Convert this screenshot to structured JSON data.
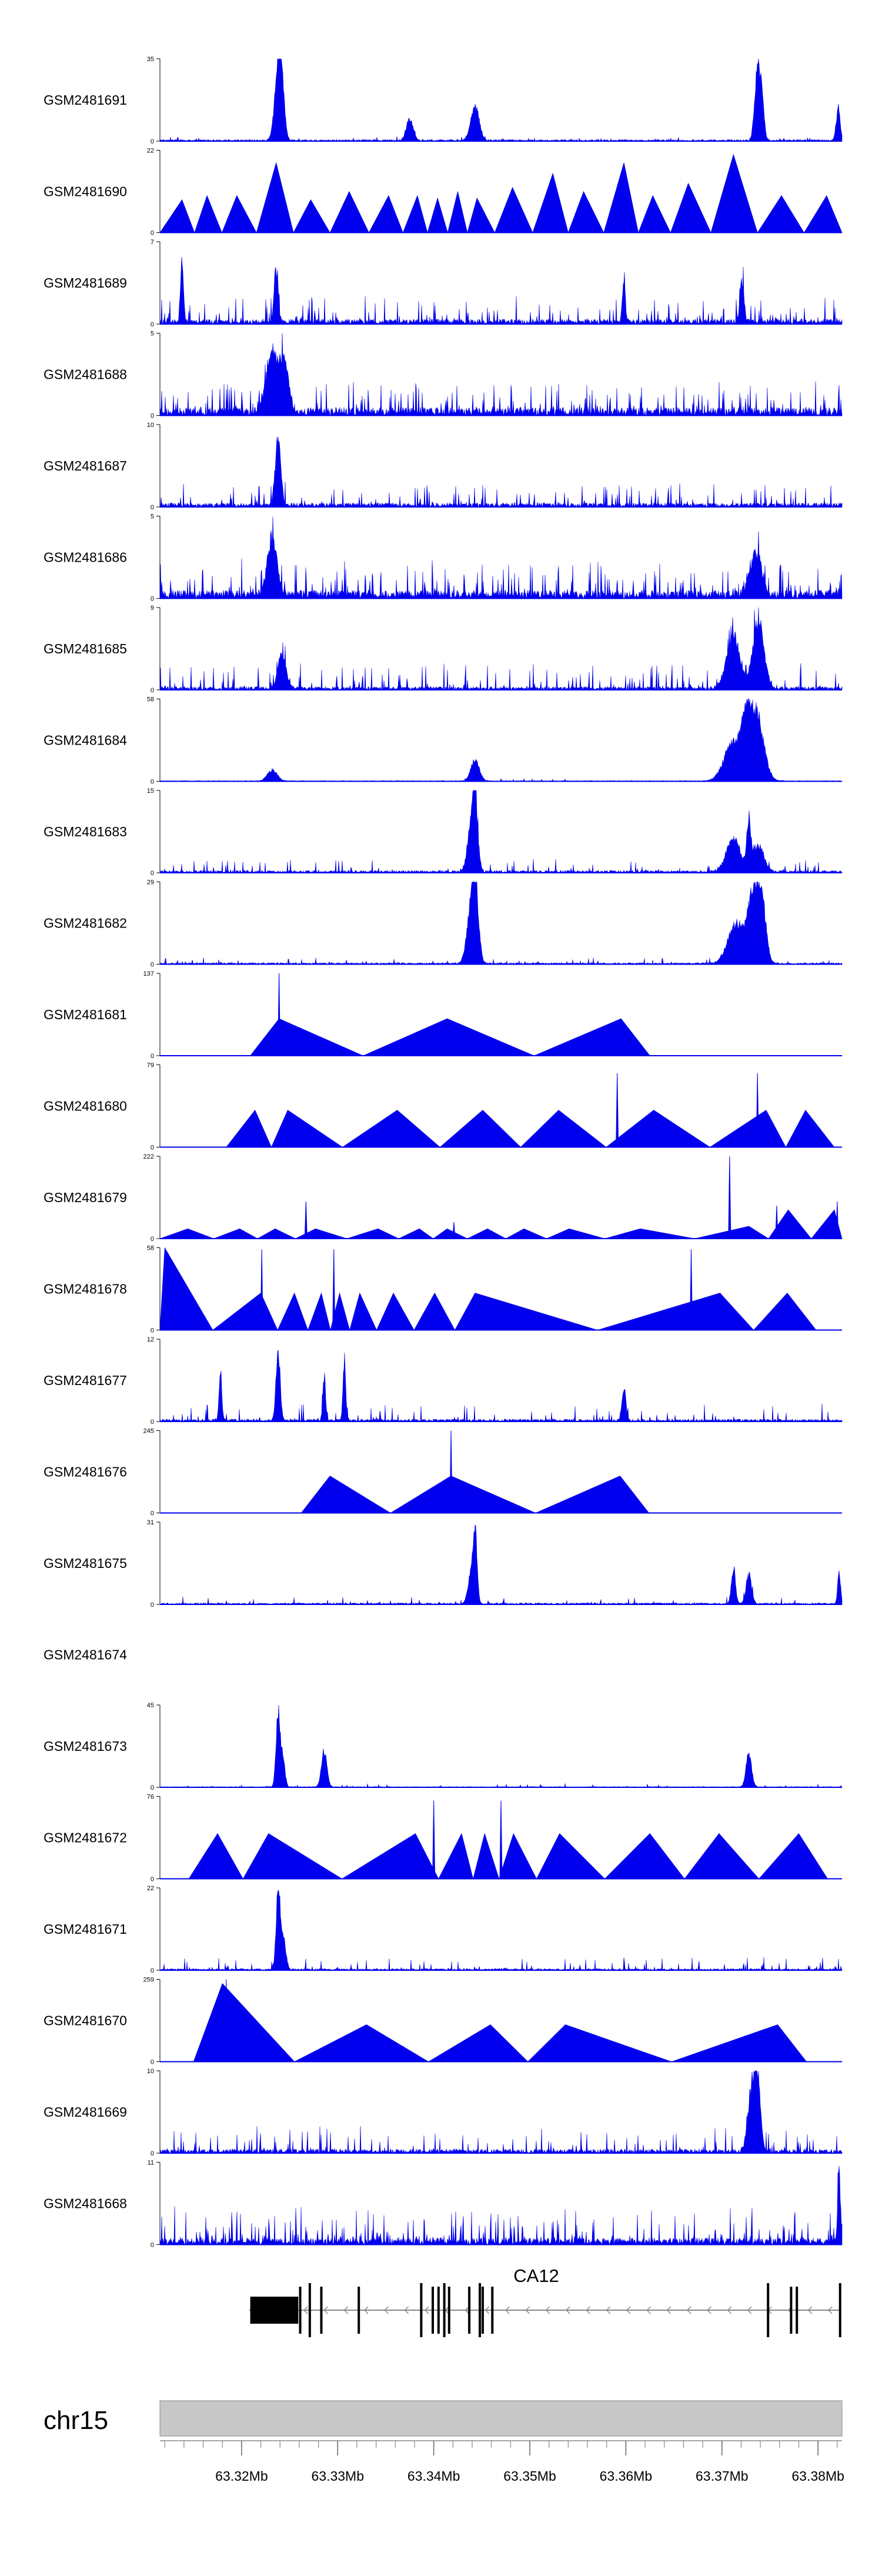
{
  "chart_data": {
    "type": "area",
    "title": "",
    "chromosome": "chr15",
    "x_range_mb": [
      63.3115,
      63.3825
    ],
    "x_ticks_mb": [
      63.32,
      63.33,
      63.34,
      63.35,
      63.36,
      63.37,
      63.38
    ],
    "x_tick_labels": [
      "63.32Mb",
      "63.33Mb",
      "63.34Mb",
      "63.35Mb",
      "63.36Mb",
      "63.37Mb",
      "63.38Mb"
    ],
    "track_color": "#0000ee",
    "tracks": [
      {
        "name": "GSM2481691",
        "ymax": 35,
        "ymin": 0,
        "baseline": 2,
        "noise": 4,
        "density": 2,
        "peaks": [
          [
            63.3238,
            1.0,
            0.0005
          ],
          [
            63.3242,
            0.55,
            0.0004
          ],
          [
            63.3375,
            0.3,
            0.0005
          ],
          [
            63.3443,
            0.48,
            0.0006
          ],
          [
            63.3737,
            1.0,
            0.0004
          ],
          [
            63.3742,
            0.5,
            0.0003
          ],
          [
            63.3821,
            0.42,
            0.0003
          ]
        ]
      },
      {
        "name": "GSM2481690",
        "ymax": 22,
        "ymin": 0,
        "triangles": [
          [
            63.3138,
            0.4
          ],
          [
            63.3164,
            0.45
          ],
          [
            63.3195,
            0.45
          ],
          [
            63.3236,
            0.85
          ],
          [
            63.3272,
            0.4
          ],
          [
            63.3312,
            0.5
          ],
          [
            63.3353,
            0.45
          ],
          [
            63.3383,
            0.45
          ],
          [
            63.3404,
            0.42
          ],
          [
            63.3425,
            0.5
          ],
          [
            63.3445,
            0.42
          ],
          [
            63.3482,
            0.55
          ],
          [
            63.3524,
            0.72
          ],
          [
            63.3556,
            0.5
          ],
          [
            63.3598,
            0.85
          ],
          [
            63.3628,
            0.45
          ],
          [
            63.3665,
            0.6
          ],
          [
            63.3712,
            0.95
          ],
          [
            63.3762,
            0.45
          ],
          [
            63.3809,
            0.45
          ]
        ]
      },
      {
        "name": "GSM2481689",
        "ymax": 7,
        "ymin": 0,
        "baseline": 6,
        "noise": 30,
        "density": 5,
        "peaks": [
          [
            63.3138,
            0.95,
            0.0002
          ],
          [
            63.3236,
            0.7,
            0.0003
          ],
          [
            63.3598,
            0.6,
            0.0002
          ],
          [
            63.3721,
            0.55,
            0.0003
          ]
        ]
      },
      {
        "name": "GSM2481688",
        "ymax": 5,
        "ymin": 0,
        "baseline": 10,
        "noise": 35,
        "density": 6,
        "peaks": [
          [
            63.3232,
            0.9,
            0.0008
          ],
          [
            63.3245,
            0.7,
            0.0006
          ]
        ]
      },
      {
        "name": "GSM2481687",
        "ymax": 10,
        "ymin": 0,
        "baseline": 5,
        "noise": 25,
        "density": 4,
        "peaks": [
          [
            63.3238,
            0.95,
            0.0004
          ]
        ]
      },
      {
        "name": "GSM2481686",
        "ymax": 5,
        "ymin": 0,
        "baseline": 10,
        "noise": 40,
        "density": 6,
        "peaks": [
          [
            63.3232,
            0.75,
            0.0007
          ],
          [
            63.3735,
            0.6,
            0.0008
          ]
        ]
      },
      {
        "name": "GSM2481685",
        "ymax": 9,
        "ymin": 0,
        "baseline": 4,
        "noise": 30,
        "density": 5,
        "peaks": [
          [
            63.3242,
            0.45,
            0.0006
          ],
          [
            63.3712,
            0.7,
            0.001
          ],
          [
            63.3738,
            0.95,
            0.0008
          ]
        ]
      },
      {
        "name": "GSM2481684",
        "ymax": 58,
        "ymin": 0,
        "baseline": 1,
        "noise": 3,
        "density": 1,
        "peaks": [
          [
            63.3232,
            0.15,
            0.0007
          ],
          [
            63.3443,
            0.3,
            0.0006
          ],
          [
            63.3712,
            0.55,
            0.0013
          ],
          [
            63.3735,
            0.95,
            0.0011
          ],
          [
            63.3725,
            0.45,
            0.0006
          ]
        ]
      },
      {
        "name": "GSM2481683",
        "ymax": 15,
        "ymin": 0,
        "baseline": 3,
        "noise": 15,
        "density": 3,
        "peaks": [
          [
            63.3443,
            1.0,
            0.0004
          ],
          [
            63.3438,
            0.5,
            0.0005
          ],
          [
            63.3712,
            0.45,
            0.001
          ],
          [
            63.3728,
            0.6,
            0.0003
          ],
          [
            63.3738,
            0.35,
            0.0008
          ]
        ]
      },
      {
        "name": "GSM2481682",
        "ymax": 29,
        "ymin": 0,
        "baseline": 2,
        "noise": 7,
        "density": 2,
        "peaks": [
          [
            63.3443,
            1.0,
            0.0005
          ],
          [
            63.3438,
            0.55,
            0.0006
          ],
          [
            63.3715,
            0.55,
            0.0012
          ],
          [
            63.3733,
            0.95,
            0.0008
          ],
          [
            63.3742,
            0.7,
            0.0006
          ]
        ]
      },
      {
        "name": "GSM2481681",
        "ymax": 137,
        "ymin": 0,
        "triangles": [
          [
            63.3239,
            0.45
          ],
          [
            63.3414,
            0.45
          ],
          [
            63.3595,
            0.45
          ]
        ],
        "spikes": [
          [
            63.3239,
            1.0
          ]
        ]
      },
      {
        "name": "GSM2481680",
        "ymax": 79,
        "ymin": 0,
        "triangles": [
          [
            63.3214,
            0.45
          ],
          [
            63.3248,
            0.45
          ],
          [
            63.3362,
            0.45
          ],
          [
            63.3451,
            0.45
          ],
          [
            63.353,
            0.45
          ],
          [
            63.3629,
            0.45
          ],
          [
            63.3746,
            0.45
          ],
          [
            63.3787,
            0.45
          ]
        ],
        "spikes": [
          [
            63.3591,
            0.9
          ],
          [
            63.3737,
            0.9
          ]
        ]
      },
      {
        "name": "GSM2481679",
        "ymax": 222,
        "ymin": 0,
        "triangles": [
          [
            63.3144,
            0.12
          ],
          [
            63.3198,
            0.12
          ],
          [
            63.3235,
            0.12
          ],
          [
            63.3277,
            0.12
          ],
          [
            63.3342,
            0.12
          ],
          [
            63.3385,
            0.12
          ],
          [
            63.3414,
            0.12
          ],
          [
            63.3456,
            0.12
          ],
          [
            63.3494,
            0.12
          ],
          [
            63.3541,
            0.12
          ],
          [
            63.3615,
            0.12
          ],
          [
            63.3728,
            0.15
          ],
          [
            63.3769,
            0.35
          ],
          [
            63.3817,
            0.35
          ]
        ],
        "spikes": [
          [
            63.3267,
            0.45
          ],
          [
            63.3421,
            0.2
          ],
          [
            63.3708,
            1.0
          ],
          [
            63.3757,
            0.4
          ],
          [
            63.382,
            0.45
          ]
        ]
      },
      {
        "name": "GSM2481678",
        "ymax": 58,
        "ymin": 0,
        "triangles": [
          [
            63.312,
            1.0
          ],
          [
            63.322,
            0.45
          ],
          [
            63.3255,
            0.45
          ],
          [
            63.3283,
            0.45
          ],
          [
            63.3302,
            0.45
          ],
          [
            63.3323,
            0.45
          ],
          [
            63.3358,
            0.45
          ],
          [
            63.3401,
            0.45
          ],
          [
            63.3443,
            0.45
          ],
          [
            63.3698,
            0.45
          ],
          [
            63.3768,
            0.45
          ]
        ],
        "spikes": [
          [
            63.3221,
            0.98
          ],
          [
            63.3296,
            0.98
          ],
          [
            63.3668,
            0.98
          ]
        ]
      },
      {
        "name": "GSM2481677",
        "ymax": 12,
        "ymin": 0,
        "baseline": 3,
        "noise": 20,
        "density": 3,
        "peaks": [
          [
            63.3178,
            0.7,
            0.0002
          ],
          [
            63.3238,
            0.95,
            0.0003
          ],
          [
            63.3286,
            0.6,
            0.0002
          ],
          [
            63.3307,
            0.85,
            0.0002
          ],
          [
            63.3598,
            0.45,
            0.0003
          ]
        ]
      },
      {
        "name": "GSM2481676",
        "ymax": 245,
        "ymin": 0,
        "triangles": [
          [
            63.3292,
            0.45
          ],
          [
            63.3418,
            0.45
          ],
          [
            63.3594,
            0.45
          ]
        ],
        "spikes": [
          [
            63.3418,
            1.0
          ]
        ]
      },
      {
        "name": "GSM2481675",
        "ymax": 31,
        "ymin": 0,
        "baseline": 2,
        "noise": 8,
        "density": 2,
        "peaks": [
          [
            63.3443,
            1.0,
            0.0003
          ],
          [
            63.3438,
            0.35,
            0.0004
          ],
          [
            63.3712,
            0.5,
            0.0003
          ],
          [
            63.3728,
            0.4,
            0.0004
          ],
          [
            63.3822,
            0.45,
            0.0002
          ]
        ]
      },
      {
        "name": "GSM2481674",
        "empty": true
      },
      {
        "name": "GSM2481673",
        "ymax": 45,
        "ymin": 0,
        "baseline": 1,
        "noise": 4,
        "density": 2,
        "peaks": [
          [
            63.3238,
            1.0,
            0.0003
          ],
          [
            63.3243,
            0.4,
            0.0003
          ],
          [
            63.3286,
            0.5,
            0.0004
          ],
          [
            63.3728,
            0.45,
            0.0004
          ]
        ]
      },
      {
        "name": "GSM2481672",
        "ymax": 76,
        "ymin": 0,
        "triangles": [
          [
            63.3175,
            0.55
          ],
          [
            63.3228,
            0.55
          ],
          [
            63.3381,
            0.55
          ],
          [
            63.3429,
            0.55
          ],
          [
            63.3453,
            0.55
          ],
          [
            63.3483,
            0.55
          ],
          [
            63.3531,
            0.55
          ],
          [
            63.3625,
            0.55
          ],
          [
            63.3697,
            0.55
          ],
          [
            63.378,
            0.55
          ]
        ],
        "spikes": [
          [
            63.34,
            0.95
          ],
          [
            63.347,
            0.95
          ],
          [
            63.3172,
            0.45
          ]
        ]
      },
      {
        "name": "GSM2481671",
        "ymax": 22,
        "ymin": 0,
        "baseline": 2,
        "noise": 15,
        "density": 3,
        "peaks": [
          [
            63.3238,
            1.0,
            0.0003
          ],
          [
            63.3243,
            0.45,
            0.0004
          ]
        ]
      },
      {
        "name": "GSM2481670",
        "ymax": 259,
        "ymin": 0,
        "triangles": [
          [
            63.318,
            0.95
          ],
          [
            63.333,
            0.45
          ],
          [
            63.3459,
            0.45
          ],
          [
            63.3537,
            0.45
          ],
          [
            63.3758,
            0.45
          ]
        ],
        "spikes": [
          [
            63.3184,
            1.0
          ]
        ]
      },
      {
        "name": "GSM2481669",
        "ymax": 10,
        "ymin": 0,
        "baseline": 5,
        "noise": 30,
        "density": 4,
        "peaks": [
          [
            63.3732,
            0.95,
            0.0006
          ],
          [
            63.3738,
            0.65,
            0.0004
          ]
        ]
      },
      {
        "name": "GSM2481668",
        "ymax": 11,
        "ymin": 0,
        "baseline": 8,
        "noise": 40,
        "density": 6,
        "peaks": [
          [
            63.3822,
            0.95,
            0.0002
          ]
        ]
      }
    ],
    "gene_track": {
      "gene": "CA12",
      "strand": "-",
      "span_mb": [
        63.3208,
        63.3823
      ],
      "utr_block_mb": [
        63.3209,
        63.3259
      ],
      "exons_mb": [
        63.3261,
        63.3271,
        63.3283,
        63.3322,
        63.3387,
        63.3399,
        63.3405,
        63.3411,
        63.3416,
        63.3437,
        63.3448,
        63.3451,
        63.3461,
        63.3748,
        63.3772,
        63.3778,
        63.3823
      ]
    }
  }
}
